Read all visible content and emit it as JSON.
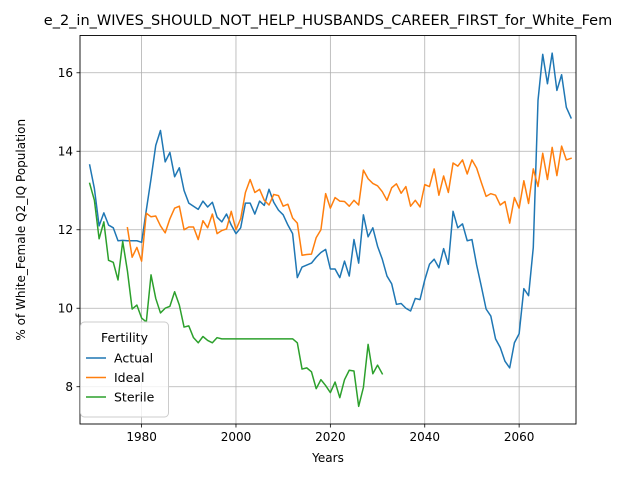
{
  "chart_data": {
    "type": "line",
    "title": "e_2_in_WIVES_SHOULD_NOT_HELP_HUSBANDS_CAREER_FIRST_for_White_Fem",
    "xlabel": "Years",
    "ylabel": "% of White_Female Q2_IQ Population",
    "xlim": [
      1966.95,
      2072.05
    ],
    "ylim": [
      7.05,
      16.95
    ],
    "x_ticks": [
      1980,
      2000,
      2020,
      2040,
      2060
    ],
    "y_ticks": [
      8,
      10,
      12,
      14,
      16
    ],
    "grid": true,
    "legend": {
      "title": "Fertility",
      "placement": "lower-left"
    },
    "series": [
      {
        "name": "Actual",
        "color": "#1f77b4",
        "x_start": 1969,
        "values": [
          13.65,
          13.05,
          12.1,
          12.43,
          12.12,
          12.05,
          11.72,
          11.73,
          11.72,
          11.72,
          11.72,
          11.68,
          12.5,
          13.3,
          14.15,
          14.53,
          13.73,
          13.97,
          13.35,
          13.58,
          13.0,
          12.68,
          12.6,
          12.52,
          12.73,
          12.58,
          12.7,
          12.32,
          12.2,
          12.4,
          12.12,
          11.9,
          12.05,
          12.68,
          12.68,
          12.4,
          12.73,
          12.62,
          13.03,
          12.7,
          12.5,
          12.38,
          12.12,
          11.9,
          10.78,
          11.05,
          11.1,
          11.15,
          11.3,
          11.42,
          11.5,
          11.0,
          11.0,
          10.78,
          11.2,
          10.82,
          11.75,
          11.15,
          12.38,
          11.82,
          12.05,
          11.58,
          11.25,
          10.82,
          10.62,
          10.1,
          10.12,
          10.0,
          9.93,
          10.25,
          10.22,
          10.72,
          11.12,
          11.25,
          11.03,
          11.52,
          11.12,
          12.47,
          12.05,
          12.15,
          11.72,
          11.75,
          11.1,
          10.55,
          9.98,
          9.8,
          9.22,
          9.0,
          8.65,
          8.48,
          9.12,
          9.35,
          10.5,
          10.32,
          11.55,
          15.3,
          16.47,
          15.72,
          16.5,
          15.55,
          15.95,
          15.12,
          14.85
        ]
      },
      {
        "name": "Ideal",
        "color": "#ff7f0e",
        "x_start": 1977,
        "values": [
          12.05,
          11.3,
          11.55,
          11.2,
          12.42,
          12.33,
          12.35,
          12.1,
          11.92,
          12.28,
          12.55,
          12.6,
          12.0,
          12.07,
          12.07,
          11.75,
          12.23,
          12.05,
          12.4,
          11.9,
          11.98,
          12.02,
          12.47,
          12.0,
          12.28,
          12.95,
          13.28,
          12.95,
          13.03,
          12.75,
          12.63,
          12.9,
          12.87,
          12.6,
          12.65,
          12.3,
          12.17,
          11.35,
          11.37,
          11.38,
          11.8,
          12.0,
          12.92,
          12.55,
          12.82,
          12.73,
          12.72,
          12.6,
          12.75,
          12.63,
          13.52,
          13.3,
          13.18,
          13.12,
          12.97,
          12.75,
          13.07,
          13.17,
          12.93,
          13.1,
          12.6,
          12.75,
          12.58,
          13.15,
          13.1,
          13.55,
          12.88,
          13.37,
          12.95,
          13.7,
          13.62,
          13.78,
          13.42,
          13.78,
          13.57,
          13.2,
          12.85,
          12.92,
          12.88,
          12.63,
          12.72,
          12.17,
          12.82,
          12.55,
          13.25,
          12.67,
          13.55,
          13.1,
          13.95,
          13.28,
          14.1,
          13.38,
          14.13,
          13.78,
          13.82
        ]
      },
      {
        "name": "Sterile",
        "color": "#2ca02c",
        "x_start": 1969,
        "values": [
          13.18,
          12.75,
          11.77,
          12.2,
          11.22,
          11.17,
          10.72,
          11.7,
          10.95,
          9.98,
          10.08,
          9.75,
          9.65,
          10.85,
          10.25,
          9.88,
          10.0,
          10.05,
          10.42,
          10.08,
          9.52,
          9.55,
          9.25,
          9.12,
          9.28,
          9.18,
          9.12,
          9.25,
          9.22,
          9.22,
          9.22,
          9.22,
          9.22,
          9.22,
          9.22,
          9.22,
          9.22,
          9.22,
          9.22,
          9.22,
          9.22,
          9.22,
          9.22,
          9.22,
          9.12,
          8.45,
          8.48,
          8.38,
          7.95,
          8.18,
          8.03,
          7.85,
          8.12,
          7.72,
          8.18,
          8.42,
          8.4,
          7.5,
          7.98,
          9.08,
          8.33,
          8.55,
          8.33
        ]
      }
    ]
  }
}
